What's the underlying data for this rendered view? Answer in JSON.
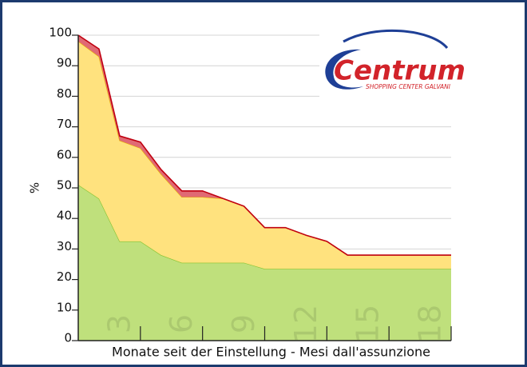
{
  "chart_data": {
    "type": "stacked_area",
    "xlabel": "Monate seit der Einstellung - Mesi dall'assunzione",
    "ylabel": "%",
    "x": [
      0,
      1,
      2,
      3,
      4,
      5,
      6,
      7,
      8,
      9,
      10,
      11,
      12,
      13,
      14,
      15,
      16,
      17,
      18
    ],
    "xlim": [
      0,
      18
    ],
    "xticks": [
      3,
      6,
      9,
      12,
      15,
      18
    ],
    "ylim": [
      0,
      100
    ],
    "yticks": [
      0,
      10,
      20,
      30,
      40,
      50,
      60,
      70,
      80,
      90,
      100
    ],
    "grid": true,
    "series": [
      {
        "color": "#bfe07c",
        "line_color": "#84c22e",
        "values": [
          51,
          46.5,
          32.5,
          32.5,
          28,
          25.5,
          25.5,
          25.5,
          25.5,
          23.5,
          23.5,
          23.5,
          23.5,
          23.5,
          23.5,
          23.5,
          23.5,
          23.5,
          23.5
        ]
      },
      {
        "color": "#ffe27e",
        "line_color": "#e8b400",
        "values": [
          47,
          46.5,
          33,
          30.5,
          26.5,
          21.5,
          21.5,
          21,
          18.5,
          13.5,
          13.5,
          11,
          9,
          4.5,
          4.5,
          4.5,
          4.5,
          4.5,
          4.5
        ]
      },
      {
        "color": "#e06a74",
        "line_color": "#c00010",
        "values": [
          2,
          2.5,
          1.5,
          2,
          1.5,
          2,
          2,
          0,
          0,
          0,
          0,
          0,
          0,
          0,
          0,
          0,
          0,
          0,
          0
        ]
      }
    ],
    "logo": {
      "name": "Centrum",
      "tagline": "SHOPPING CENTER GALVANI"
    }
  }
}
